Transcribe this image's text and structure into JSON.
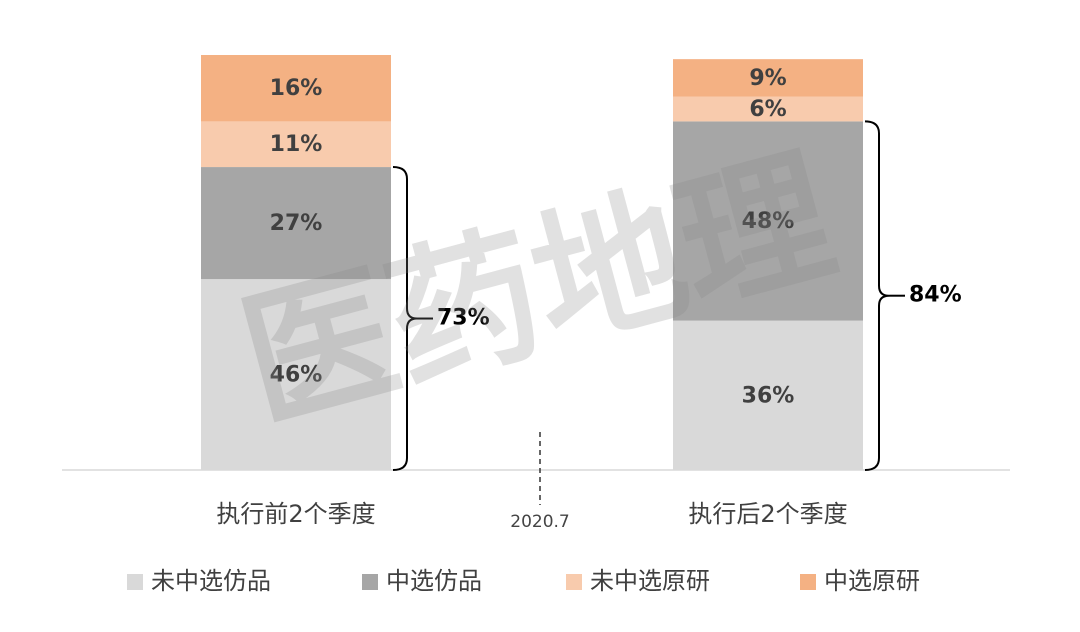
{
  "chart_data": {
    "type": "stacked_bar",
    "categories": [
      "执行前2个季度",
      "执行后2个季度"
    ],
    "series": [
      {
        "name": "未中选仿品",
        "color": "#d9d9d9",
        "values": [
          46,
          36
        ],
        "value_labels": [
          "46%",
          "36%"
        ]
      },
      {
        "name": "中选仿品",
        "color": "#a6a6a6",
        "values": [
          27,
          48
        ],
        "value_labels": [
          "27%",
          "48%"
        ]
      },
      {
        "name": "未中选原研",
        "color": "#f8cbad",
        "values": [
          11,
          6
        ],
        "value_labels": [
          "11%",
          "6%"
        ]
      },
      {
        "name": "中选原研",
        "color": "#f4b183",
        "values": [
          16,
          9
        ],
        "value_labels": [
          "16%",
          "9%"
        ]
      }
    ],
    "brackets": [
      {
        "value": 73,
        "label": "73%"
      },
      {
        "value": 84,
        "label": "84%"
      }
    ],
    "divider_label": "2020.7",
    "watermark": "医药地理",
    "ylim": [
      0,
      100
    ],
    "legend": "bottom"
  }
}
